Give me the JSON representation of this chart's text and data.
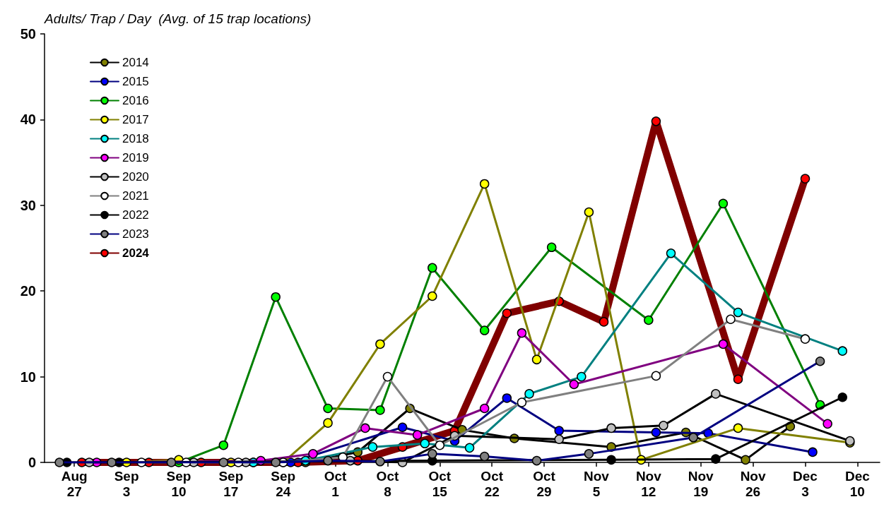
{
  "chart_data": {
    "type": "line",
    "ylabel": "Adults/ Trap / Day  (Avg. of 15 trap locations)",
    "xlim": [
      "--08-23",
      "--12-13"
    ],
    "xticks": [
      {
        "value": "--08-27",
        "label": "Aug 27"
      },
      {
        "value": "--09-03",
        "label": "Sep 3"
      },
      {
        "value": "--09-10",
        "label": "Sep 10"
      },
      {
        "value": "--09-17",
        "label": "Sep 17"
      },
      {
        "value": "--09-24",
        "label": "Sep 24"
      },
      {
        "value": "--10-01",
        "label": "Oct 1"
      },
      {
        "value": "--10-08",
        "label": "Oct 8"
      },
      {
        "value": "--10-15",
        "label": "Oct 15"
      },
      {
        "value": "--10-22",
        "label": "Oct 22"
      },
      {
        "value": "--10-29",
        "label": "Oct 29"
      },
      {
        "value": "--11-05",
        "label": "Nov 5"
      },
      {
        "value": "--11-12",
        "label": "Nov 12"
      },
      {
        "value": "--11-19",
        "label": "Nov 19"
      },
      {
        "value": "--11-26",
        "label": "Nov 26"
      },
      {
        "value": "--12-03",
        "label": "Dec 3"
      },
      {
        "value": "--12-10",
        "label": "Dec 10"
      }
    ],
    "ylim": [
      0,
      50
    ],
    "yticks": [
      0,
      10,
      20,
      30,
      40,
      50
    ],
    "marker": "circle",
    "legend": "top left",
    "series": [
      {
        "name": "2014",
        "color": "#000000",
        "colors": [
          "#808000",
          "#808000",
          "#808000",
          "#808000",
          "#808000",
          "#808000",
          "#808000",
          "#808000",
          "#808000"
        ],
        "x": [
          "--09-27",
          "--10-04",
          "--10-11",
          "--10-18",
          "--10-25",
          "--11-07",
          "--11-17",
          "--11-25",
          "--12-01"
        ],
        "values": [
          0,
          1.2,
          6.3,
          3.8,
          2.8,
          1.8,
          3.5,
          0.3,
          4.2
        ]
      },
      {
        "name": "2015",
        "color": "#000080",
        "colors": [
          "#0000ff",
          "#0000ff",
          "#0000ff",
          "#0000ff",
          "#0000ff",
          "#0000ff",
          "#0000ff",
          "#0000ff"
        ],
        "x": [
          "--09-25",
          "--10-10",
          "--10-17",
          "--10-24",
          "--10-31",
          "--11-13",
          "--11-20",
          "--12-04"
        ],
        "values": [
          0,
          4.1,
          2.5,
          7.5,
          3.7,
          3.5,
          3.4,
          1.2
        ]
      },
      {
        "name": "2016",
        "color": "#008000",
        "colors": [
          "#00ff00",
          "#00ff00",
          "#00ff00",
          "#00ff00",
          "#00ff00",
          "#00ff00",
          "#00ff00",
          "#00ff00",
          "#00ff00",
          "#00ff00",
          "#00ff00"
        ],
        "x": [
          "--09-10",
          "--09-16",
          "--09-23",
          "--09-30",
          "--10-07",
          "--10-14",
          "--10-21",
          "--10-30",
          "--11-12",
          "--11-22",
          "--12-05"
        ],
        "values": [
          0,
          2.0,
          19.3,
          6.3,
          6.1,
          22.7,
          15.4,
          25.1,
          16.6,
          30.2,
          6.7
        ]
      },
      {
        "name": "2017",
        "color": "#808000",
        "colors": [
          "#ffff00",
          "#ffff00",
          "#ffff00",
          "#ffff00",
          "#ffff00",
          "#ffff00",
          "#ffff00",
          "#ffff00",
          "#ffff00",
          "#ffff00",
          "#ffff00",
          "#ffff00",
          "#ffff00"
        ],
        "x": [
          "--09-03",
          "--09-10",
          "--09-17",
          "--09-24",
          "--09-30",
          "--10-07",
          "--10-14",
          "--10-21",
          "--10-28",
          "--11-04",
          "--11-11",
          "--11-24",
          "--12-09"
        ],
        "values": [
          0,
          0.3,
          0,
          0,
          4.6,
          13.8,
          19.4,
          32.5,
          12.0,
          29.2,
          0.3,
          4.0,
          2.3
        ]
      },
      {
        "name": "2018",
        "color": "#008080",
        "colors": [
          "#00ffff",
          "#00ffff",
          "#00ffff",
          "#00ffff",
          "#00ffff",
          "#00ffff",
          "#00ffff",
          "#00ffff",
          "#00ffff",
          "#00ffff"
        ],
        "x": [
          "--09-20",
          "--09-27",
          "--10-06",
          "--10-13",
          "--10-19",
          "--10-27",
          "--11-03",
          "--11-15",
          "--11-24",
          "--12-08"
        ],
        "values": [
          0,
          0.2,
          1.8,
          2.2,
          1.7,
          8.0,
          10.0,
          24.4,
          17.5,
          13.0
        ]
      },
      {
        "name": "2019",
        "color": "#800080",
        "colors": [
          "#ff00ff",
          "#ff00ff",
          "#ff00ff",
          "#ff00ff",
          "#ff00ff",
          "#ff00ff",
          "#ff00ff",
          "#ff00ff",
          "#ff00ff",
          "#ff00ff"
        ],
        "x": [
          "--08-30",
          "--09-21",
          "--09-28",
          "--10-05",
          "--10-12",
          "--10-21",
          "--10-26",
          "--11-02",
          "--11-22",
          "--12-06"
        ],
        "values": [
          0,
          0.2,
          1.0,
          4.0,
          3.2,
          6.3,
          15.1,
          9.1,
          13.8,
          4.5
        ]
      },
      {
        "name": "2020",
        "color": "#000000",
        "colors": [
          "#c0c0c0",
          "#c0c0c0",
          "#c0c0c0",
          "#c0c0c0",
          "#c0c0c0",
          "#c0c0c0",
          "#c0c0c0",
          "#c0c0c0",
          "#c0c0c0",
          "#c0c0c0",
          "#c0c0c0"
        ],
        "x": [
          "--08-29",
          "--09-12",
          "--09-19",
          "--10-03",
          "--10-10",
          "--10-17",
          "--10-31",
          "--11-07",
          "--11-14",
          "--11-21",
          "--12-09"
        ],
        "values": [
          0,
          0,
          0,
          0.2,
          0,
          3.1,
          2.7,
          4.0,
          4.3,
          8.0,
          2.5
        ]
      },
      {
        "name": "2021",
        "color": "#808080",
        "colors": [
          "#ffffff",
          "#ffffff",
          "#ffffff",
          "#ffffff",
          "#ffffff",
          "#ffffff",
          "#ffffff",
          "#ffffff",
          "#ffffff",
          "#ffffff",
          "#ffffff"
        ],
        "x": [
          "--09-05",
          "--09-11",
          "--09-18",
          "--09-24",
          "--10-02",
          "--10-08",
          "--10-15",
          "--10-26",
          "--11-13",
          "--11-23",
          "--12-03"
        ],
        "values": [
          0,
          0,
          0,
          0,
          0.6,
          10.0,
          2.0,
          7.0,
          10.1,
          16.7,
          14.4
        ]
      },
      {
        "name": "2022",
        "color": "#000000",
        "colors": [
          "#000000",
          "#000000",
          "#000000",
          "#000000",
          "#000000",
          "#000000"
        ],
        "x": [
          "--08-26",
          "--09-02",
          "--10-14",
          "--11-07",
          "--11-21",
          "--12-08"
        ],
        "values": [
          0,
          0,
          0.2,
          0.3,
          0.4,
          7.6
        ]
      },
      {
        "name": "2023",
        "color": "#000080",
        "colors": [
          "#808080",
          "#808080",
          "#808080",
          "#808080",
          "#808080",
          "#808080",
          "#808080",
          "#808080",
          "#808080",
          "#808080",
          "#808080",
          "#808080",
          "#808080"
        ],
        "x": [
          "--08-25",
          "--09-01",
          "--09-09",
          "--09-16",
          "--09-23",
          "--09-30",
          "--10-07",
          "--10-14",
          "--10-21",
          "--10-28",
          "--11-04",
          "--11-18",
          "--12-05"
        ],
        "values": [
          0,
          0,
          0,
          0,
          0,
          0.2,
          0.1,
          1.0,
          0.7,
          0.2,
          1.0,
          2.9,
          11.8
        ]
      },
      {
        "name": "2024",
        "color": "#800000",
        "colors": [
          "#ff0000",
          "#ff0000",
          "#ff0000",
          "#ff0000",
          "#ff0000",
          "#ff0000",
          "#ff0000",
          "#ff0000",
          "#ff0000",
          "#ff0000",
          "#ff0000",
          "#ff0000",
          "#ff0000",
          "#ff0000"
        ],
        "x": [
          "--08-28",
          "--09-06",
          "--09-13",
          "--09-20",
          "--09-26",
          "--10-04",
          "--10-10",
          "--10-17",
          "--10-24",
          "--10-31",
          "--11-06",
          "--11-13",
          "--11-24",
          "--12-03"
        ],
        "values": [
          0,
          0,
          0,
          0,
          0,
          0.2,
          1.8,
          3.7,
          17.4,
          18.8,
          16.4,
          39.8,
          9.7,
          33.1
        ]
      }
    ]
  }
}
